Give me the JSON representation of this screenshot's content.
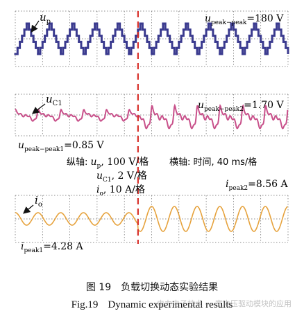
{
  "caption": {
    "cn_number": "图 19",
    "cn_text": "负载切换动态实验结果",
    "en_number": "Fig.19",
    "en_text": "Dynamic experimental results"
  },
  "watermark": "电力电子技术 — 宽电压驱动模块的应用",
  "colors": {
    "up": "#3b3b8f",
    "uc1": "#c8508a",
    "io": "#e6a23c",
    "switch_line": "#d8302a",
    "grid": "#666666"
  },
  "annotations": {
    "up_label_main": "u",
    "up_label_sub": "p",
    "uc1_label_main": "u",
    "uc1_label_sub": "C1",
    "io_label_main": "i",
    "io_label_sub": "o",
    "up_peak_main": "u",
    "up_peak_sub": "peak−peak",
    "up_peak_val": "=180 V",
    "uc1_peak2_main": "u",
    "uc1_peak2_sub": "peak−peak2",
    "uc1_peak2_val": "=1.70 V",
    "uc1_peak1_main": "u",
    "uc1_peak1_sub": "peak−peak1",
    "uc1_peak1_val": "=0.85 V",
    "scale_v_prefix": "纵轴: ",
    "scale_up_main": "u",
    "scale_up_sub": "p",
    "scale_up_val": ", 100 V/格",
    "scale_h": "横轴: 时间, 40 ms/格",
    "scale_uc1_main": "u",
    "scale_uc1_sub": "C1",
    "scale_uc1_val": ", 2 V/格",
    "scale_io_main": "i",
    "scale_io_sub": "o",
    "scale_io_val": ", 10 A/格",
    "ipeak2_main": "i",
    "ipeak2_sub": "peak2",
    "ipeak2_val": "=8.56 A",
    "ipeak1_main": "i",
    "ipeak1_sub": "peak1",
    "ipeak1_val": "=4.28 A"
  },
  "chart_data": {
    "type": "line",
    "series": [
      {
        "name": "u_p",
        "peak_to_peak_V": 180,
        "scale": "100 V/格",
        "cycles": 12,
        "waveform": "stepped-triangle"
      },
      {
        "name": "u_C1",
        "peak_to_peak_before_V": 0.85,
        "peak_to_peak_after_V": 1.7,
        "scale": "2 V/格",
        "cycles": 12
      },
      {
        "name": "i_o",
        "peak_before_A": 4.28,
        "peak_after_A": 8.56,
        "scale": "10 A/格",
        "cycles": 12
      }
    ],
    "x_scale": "40 ms/格",
    "load_switch_division": 4.5,
    "divisions_x": 10,
    "grid": true
  }
}
